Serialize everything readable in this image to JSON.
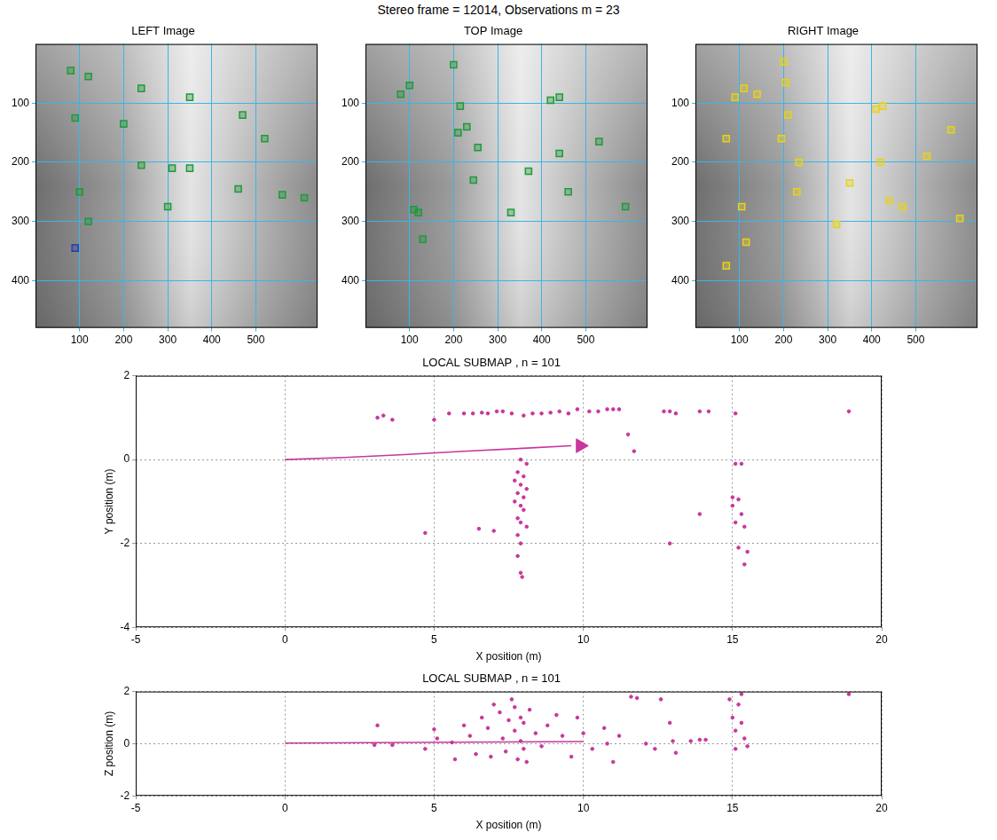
{
  "title": "Stereo frame = 12014, Observations m = 23",
  "chart_data": [
    {
      "type": "image",
      "title": "LEFT Image",
      "grid": true,
      "xlim": [
        0,
        640
      ],
      "ylim": [
        0,
        480
      ],
      "xticks": [
        100,
        200,
        300,
        400,
        500
      ],
      "yticks": [
        100,
        200,
        300,
        400
      ],
      "series": [
        {
          "type": "scatter",
          "color": "#1f9a3a",
          "marker": "square",
          "x": [
            80,
            120,
            240,
            350,
            470,
            520,
            90,
            200,
            240,
            310,
            350,
            460,
            560,
            610,
            100,
            300,
            120
          ],
          "values": [
            45,
            55,
            75,
            90,
            120,
            160,
            125,
            135,
            205,
            210,
            210,
            245,
            255,
            260,
            250,
            275,
            300
          ]
        },
        {
          "type": "scatter",
          "color": "#2a3aa8",
          "marker": "square",
          "x": [
            90
          ],
          "values": [
            345
          ]
        }
      ]
    },
    {
      "type": "image",
      "title": "TOP Image",
      "grid": true,
      "xlim": [
        0,
        640
      ],
      "ylim": [
        0,
        480
      ],
      "xticks": [
        100,
        200,
        300,
        400,
        500
      ],
      "yticks": [
        100,
        200,
        300,
        400
      ],
      "series": [
        {
          "type": "scatter",
          "color": "#1f9a3a",
          "marker": "square",
          "x": [
            100,
            80,
            200,
            215,
            230,
            255,
            210,
            245,
            110,
            120,
            130,
            330,
            370,
            420,
            440,
            440,
            460,
            530,
            590
          ],
          "values": [
            70,
            85,
            35,
            105,
            140,
            175,
            150,
            230,
            280,
            285,
            330,
            285,
            215,
            95,
            90,
            185,
            250,
            165,
            275
          ]
        }
      ]
    },
    {
      "type": "image",
      "title": "RIGHT Image",
      "grid": true,
      "xlim": [
        0,
        640
      ],
      "ylim": [
        0,
        480
      ],
      "xticks": [
        100,
        200,
        300,
        400,
        500
      ],
      "yticks": [
        100,
        200,
        300,
        400
      ],
      "series": [
        {
          "type": "scatter",
          "color": "#e8d21a",
          "marker": "square",
          "x": [
            90,
            110,
            140,
            70,
            200,
            205,
            210,
            195,
            230,
            235,
            105,
            115,
            70,
            320,
            350,
            410,
            425,
            420,
            440,
            470,
            525,
            580,
            600
          ],
          "values": [
            90,
            75,
            85,
            160,
            30,
            65,
            120,
            160,
            250,
            200,
            275,
            335,
            375,
            305,
            235,
            110,
            105,
            200,
            265,
            275,
            190,
            145,
            295
          ]
        }
      ]
    },
    {
      "type": "scatter",
      "title": "LOCAL SUBMAP , n = 101",
      "x_label": "X position (m)",
      "y_label": "Y position (m)",
      "grid": true,
      "xlim": [
        -5,
        20
      ],
      "ylim": [
        -4,
        2
      ],
      "xticks": [
        -5,
        0,
        5,
        10,
        15,
        20
      ],
      "yticks": [
        -4,
        -2,
        0,
        2
      ],
      "series": [
        {
          "type": "line",
          "color": "#c8379b",
          "line_style": "solid",
          "x": [
            0,
            2,
            4,
            6,
            8,
            9.6
          ],
          "values": [
            0,
            0.05,
            0.12,
            0.2,
            0.27,
            0.33
          ]
        },
        {
          "type": "scatter",
          "color": "#c8379b",
          "marker": "triangle",
          "x": [
            9.9
          ],
          "values": [
            0.33
          ]
        },
        {
          "type": "scatter",
          "color": "#c8379b",
          "marker": "circle",
          "x": [
            3.1,
            3.3,
            3.6,
            5.0,
            5.5,
            6.0,
            6.3,
            6.6,
            6.8,
            7.1,
            7.3,
            7.6,
            8.0,
            8.3,
            8.6,
            8.9,
            9.2,
            9.5,
            9.8,
            10.2,
            10.5,
            10.8,
            11.0,
            11.2,
            12.7,
            12.9,
            13.1,
            13.9,
            14.2,
            15.1,
            18.9,
            11.5,
            11.7,
            7.9,
            8.1,
            7.8,
            8.0,
            7.7,
            7.9,
            8.1,
            7.8,
            8.0,
            7.7,
            7.9,
            8.0,
            7.8,
            7.9,
            8.1,
            7.8,
            7.9,
            7.8,
            7.9,
            7.95,
            4.7,
            6.5,
            7.0,
            12.9,
            13.9,
            15.1,
            15.3,
            15.0,
            15.2,
            15.3,
            15.1,
            15.4,
            15.2,
            15.5,
            15.4,
            15.0
          ],
          "values": [
            1.0,
            1.05,
            0.95,
            0.95,
            1.1,
            1.1,
            1.1,
            1.12,
            1.1,
            1.15,
            1.15,
            1.1,
            1.05,
            1.1,
            1.1,
            1.12,
            1.15,
            1.1,
            1.2,
            1.15,
            1.15,
            1.2,
            1.2,
            1.2,
            1.15,
            1.15,
            1.1,
            1.15,
            1.15,
            1.1,
            1.15,
            0.6,
            0.2,
            0,
            -0.1,
            -0.3,
            -0.4,
            -0.5,
            -0.6,
            -0.7,
            -0.8,
            -0.9,
            -1.0,
            -1.1,
            -1.2,
            -1.4,
            -1.5,
            -1.6,
            -1.8,
            -2.0,
            -2.3,
            -2.7,
            -2.8,
            -1.75,
            -1.65,
            -1.7,
            -2.0,
            -1.3,
            -0.1,
            -0.1,
            -0.9,
            -0.95,
            -1.3,
            -1.5,
            -1.6,
            -2.1,
            -2.2,
            -2.5,
            -1.1
          ]
        }
      ]
    },
    {
      "type": "scatter",
      "title": "LOCAL SUBMAP , n = 101",
      "x_label": "X position (m)",
      "y_label": "Z position (m)",
      "grid": true,
      "xlim": [
        -5,
        20
      ],
      "ylim": [
        -2,
        2
      ],
      "xticks": [
        -5,
        0,
        5,
        10,
        15,
        20
      ],
      "yticks": [
        -2,
        0,
        2
      ],
      "series": [
        {
          "type": "line",
          "color": "#c8379b",
          "line_style": "solid",
          "x": [
            0,
            10
          ],
          "values": [
            0.02,
            0.08
          ]
        },
        {
          "type": "scatter",
          "color": "#c8379b",
          "marker": "circle",
          "x": [
            3.1,
            3.0,
            3.6,
            4.7,
            5.0,
            5.1,
            5.6,
            5.7,
            6.0,
            6.2,
            6.4,
            6.6,
            6.8,
            6.9,
            7.0,
            7.2,
            7.3,
            7.4,
            7.5,
            7.6,
            7.7,
            7.7,
            7.8,
            7.9,
            7.9,
            8.0,
            8.0,
            8.1,
            8.2,
            8.4,
            8.6,
            8.8,
            9.1,
            9.3,
            9.6,
            9.8,
            10.0,
            10.3,
            10.7,
            10.8,
            11.0,
            11.2,
            11.6,
            11.8,
            12.1,
            12.4,
            12.6,
            12.9,
            13.0,
            13.1,
            13.6,
            13.9,
            14.1,
            14.9,
            15.0,
            15.1,
            15.2,
            15.3,
            15.4,
            15.5,
            15.3,
            18.9,
            15.1
          ],
          "values": [
            0.7,
            -0.05,
            -0.05,
            -0.2,
            0.55,
            0.2,
            0.05,
            -0.6,
            0.7,
            0.3,
            -0.4,
            1.0,
            0.6,
            -0.5,
            1.5,
            1.2,
            0.2,
            -0.3,
            0.9,
            1.7,
            1.4,
            0.5,
            -0.6,
            1.0,
            0.1,
            -0.2,
            0.8,
            -0.7,
            1.3,
            0.4,
            -0.1,
            0.7,
            1.1,
            0.3,
            -0.5,
            1.0,
            0.4,
            -0.2,
            0.6,
            0.0,
            -0.7,
            0.3,
            1.8,
            1.75,
            0.0,
            -0.2,
            1.7,
            0.8,
            0.1,
            -0.35,
            0.1,
            0.15,
            0.15,
            1.7,
            1.0,
            0.5,
            1.5,
            0.8,
            0.2,
            -0.1,
            1.9,
            1.9,
            -0.2
          ]
        }
      ]
    }
  ]
}
